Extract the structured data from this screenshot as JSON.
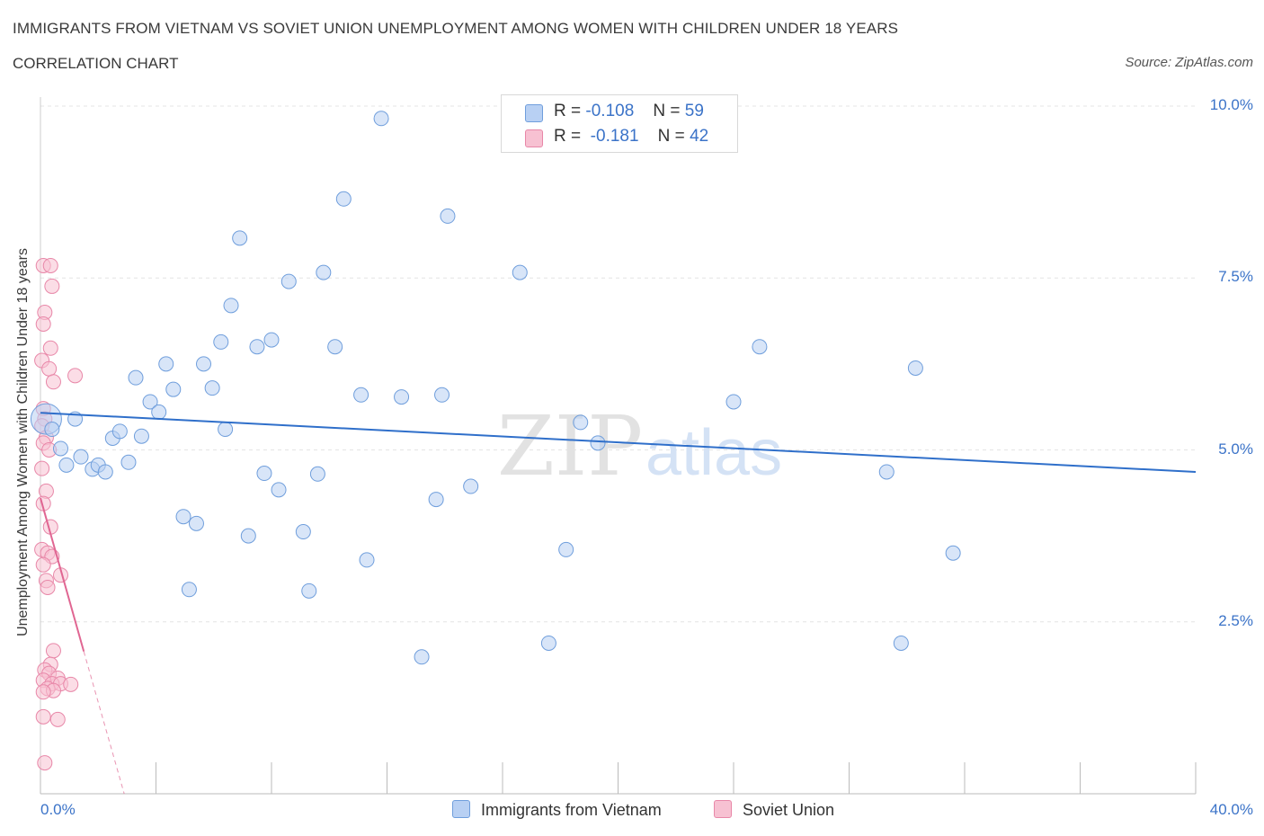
{
  "header": {
    "title": "IMMIGRANTS FROM VIETNAM VS SOVIET UNION UNEMPLOYMENT AMONG WOMEN WITH CHILDREN UNDER 18 YEARS",
    "subtitle": "CORRELATION CHART",
    "source": "Source: ZipAtlas.com"
  },
  "watermark": {
    "zip": "ZIP",
    "atlas": "atlas"
  },
  "legend": {
    "r_label": "R =",
    "n_label": "N =",
    "vietnam": {
      "r": "-0.108",
      "n": "59"
    },
    "soviet": {
      "r": "-0.181",
      "n": "42"
    }
  },
  "colors": {
    "vietnam_fill": "#b8d0f3",
    "vietnam_stroke": "#6f9edc",
    "vietnam_line": "#2f6fca",
    "soviet_fill": "#f7c1d2",
    "soviet_stroke": "#e887a8",
    "soviet_line": "#e06692",
    "axis_text": "#3b73c8",
    "grid": "#e4e4e4"
  },
  "chart_data": {
    "type": "scatter",
    "title": "IMMIGRANTS FROM VIETNAM VS SOVIET UNION UNEMPLOYMENT AMONG WOMEN WITH CHILDREN UNDER 18 YEARS",
    "xlabel": "",
    "ylabel": "Unemployment Among Women with Children Under 18 years",
    "xlim": [
      0,
      40
    ],
    "ylim": [
      0,
      10.0
    ],
    "x_tick_labels": [
      {
        "value": 0,
        "label": "0.0%"
      },
      {
        "value": 40,
        "label": "40.0%"
      }
    ],
    "y_tick_labels": [
      {
        "value": 2.5,
        "label": "2.5%"
      },
      {
        "value": 5.0,
        "label": "5.0%"
      },
      {
        "value": 7.5,
        "label": "7.5%"
      },
      {
        "value": 10.0,
        "label": "10.0%"
      }
    ],
    "grid": true,
    "legend_position": "top-center",
    "series": [
      {
        "name": "Immigrants from Vietnam",
        "r": -0.108,
        "n": 59,
        "trend": {
          "x": [
            0,
            40
          ],
          "y": [
            5.54,
            4.68
          ]
        },
        "points": [
          {
            "x": 0.2,
            "y": 5.45,
            "s": "big"
          },
          {
            "x": 0.4,
            "y": 5.3
          },
          {
            "x": 0.7,
            "y": 5.02
          },
          {
            "x": 1.2,
            "y": 5.45
          },
          {
            "x": 1.4,
            "y": 4.9
          },
          {
            "x": 0.9,
            "y": 4.78
          },
          {
            "x": 1.8,
            "y": 4.72
          },
          {
            "x": 2.0,
            "y": 4.78
          },
          {
            "x": 2.25,
            "y": 4.68
          },
          {
            "x": 2.5,
            "y": 5.17
          },
          {
            "x": 2.75,
            "y": 5.27
          },
          {
            "x": 3.05,
            "y": 4.82
          },
          {
            "x": 3.3,
            "y": 6.05
          },
          {
            "x": 3.5,
            "y": 5.2
          },
          {
            "x": 3.8,
            "y": 5.7
          },
          {
            "x": 4.1,
            "y": 5.55
          },
          {
            "x": 4.35,
            "y": 6.25
          },
          {
            "x": 4.6,
            "y": 5.88
          },
          {
            "x": 4.95,
            "y": 4.03
          },
          {
            "x": 5.15,
            "y": 2.97
          },
          {
            "x": 5.4,
            "y": 3.93
          },
          {
            "x": 5.65,
            "y": 6.25
          },
          {
            "x": 5.95,
            "y": 5.9
          },
          {
            "x": 6.25,
            "y": 6.57
          },
          {
            "x": 6.4,
            "y": 5.3
          },
          {
            "x": 6.6,
            "y": 7.1
          },
          {
            "x": 6.9,
            "y": 8.08
          },
          {
            "x": 7.2,
            "y": 3.75
          },
          {
            "x": 7.5,
            "y": 6.5
          },
          {
            "x": 7.75,
            "y": 4.66
          },
          {
            "x": 8.0,
            "y": 6.6
          },
          {
            "x": 8.25,
            "y": 4.42
          },
          {
            "x": 8.6,
            "y": 7.45
          },
          {
            "x": 9.1,
            "y": 3.81
          },
          {
            "x": 9.3,
            "y": 2.95
          },
          {
            "x": 9.6,
            "y": 4.65
          },
          {
            "x": 9.8,
            "y": 7.58
          },
          {
            "x": 10.2,
            "y": 6.5
          },
          {
            "x": 10.5,
            "y": 8.65
          },
          {
            "x": 11.1,
            "y": 5.8
          },
          {
            "x": 11.3,
            "y": 3.4
          },
          {
            "x": 11.8,
            "y": 9.82
          },
          {
            "x": 12.5,
            "y": 5.77
          },
          {
            "x": 13.2,
            "y": 1.99
          },
          {
            "x": 13.7,
            "y": 4.28
          },
          {
            "x": 13.9,
            "y": 5.8
          },
          {
            "x": 14.1,
            "y": 8.4
          },
          {
            "x": 14.9,
            "y": 4.47
          },
          {
            "x": 16.6,
            "y": 7.58
          },
          {
            "x": 17.6,
            "y": 2.19
          },
          {
            "x": 18.2,
            "y": 3.55
          },
          {
            "x": 18.7,
            "y": 5.4
          },
          {
            "x": 19.3,
            "y": 5.1
          },
          {
            "x": 24.0,
            "y": 5.7
          },
          {
            "x": 24.9,
            "y": 6.5
          },
          {
            "x": 29.3,
            "y": 4.68
          },
          {
            "x": 29.8,
            "y": 2.19
          },
          {
            "x": 30.3,
            "y": 6.19
          },
          {
            "x": 31.6,
            "y": 3.5
          }
        ]
      },
      {
        "name": "Soviet Union",
        "r": -0.181,
        "n": 42,
        "trend": {
          "x": [
            0,
            1.5
          ],
          "y": [
            4.3,
            2.07
          ]
        },
        "trend_dashed": {
          "x": [
            1.5,
            2.9
          ],
          "y": [
            2.07,
            0.0
          ]
        },
        "points": [
          {
            "x": 0.1,
            "y": 7.68
          },
          {
            "x": 0.35,
            "y": 7.68
          },
          {
            "x": 0.4,
            "y": 7.38
          },
          {
            "x": 0.15,
            "y": 7.0
          },
          {
            "x": 0.1,
            "y": 6.83
          },
          {
            "x": 0.35,
            "y": 6.48
          },
          {
            "x": 0.05,
            "y": 6.3
          },
          {
            "x": 0.3,
            "y": 6.18
          },
          {
            "x": 0.45,
            "y": 5.99
          },
          {
            "x": 1.2,
            "y": 6.08
          },
          {
            "x": 0.1,
            "y": 5.6
          },
          {
            "x": 0.15,
            "y": 5.45
          },
          {
            "x": 0.05,
            "y": 5.35
          },
          {
            "x": 0.2,
            "y": 5.18
          },
          {
            "x": 0.1,
            "y": 5.1
          },
          {
            "x": 0.3,
            "y": 5.0
          },
          {
            "x": 0.05,
            "y": 4.73
          },
          {
            "x": 0.2,
            "y": 4.4
          },
          {
            "x": 0.1,
            "y": 4.22
          },
          {
            "x": 0.35,
            "y": 3.88
          },
          {
            "x": 0.05,
            "y": 3.55
          },
          {
            "x": 0.25,
            "y": 3.5
          },
          {
            "x": 0.4,
            "y": 3.45
          },
          {
            "x": 0.1,
            "y": 3.33
          },
          {
            "x": 0.7,
            "y": 3.18
          },
          {
            "x": 0.2,
            "y": 3.1
          },
          {
            "x": 0.25,
            "y": 3.0
          },
          {
            "x": 0.45,
            "y": 2.08
          },
          {
            "x": 0.35,
            "y": 1.88
          },
          {
            "x": 0.15,
            "y": 1.8
          },
          {
            "x": 0.3,
            "y": 1.75
          },
          {
            "x": 0.6,
            "y": 1.68
          },
          {
            "x": 0.1,
            "y": 1.65
          },
          {
            "x": 0.4,
            "y": 1.6
          },
          {
            "x": 0.7,
            "y": 1.6
          },
          {
            "x": 1.05,
            "y": 1.59
          },
          {
            "x": 0.25,
            "y": 1.53
          },
          {
            "x": 0.45,
            "y": 1.5
          },
          {
            "x": 0.1,
            "y": 1.12
          },
          {
            "x": 0.6,
            "y": 1.08
          },
          {
            "x": 0.15,
            "y": 0.45
          },
          {
            "x": 0.1,
            "y": 1.48
          }
        ]
      }
    ]
  }
}
